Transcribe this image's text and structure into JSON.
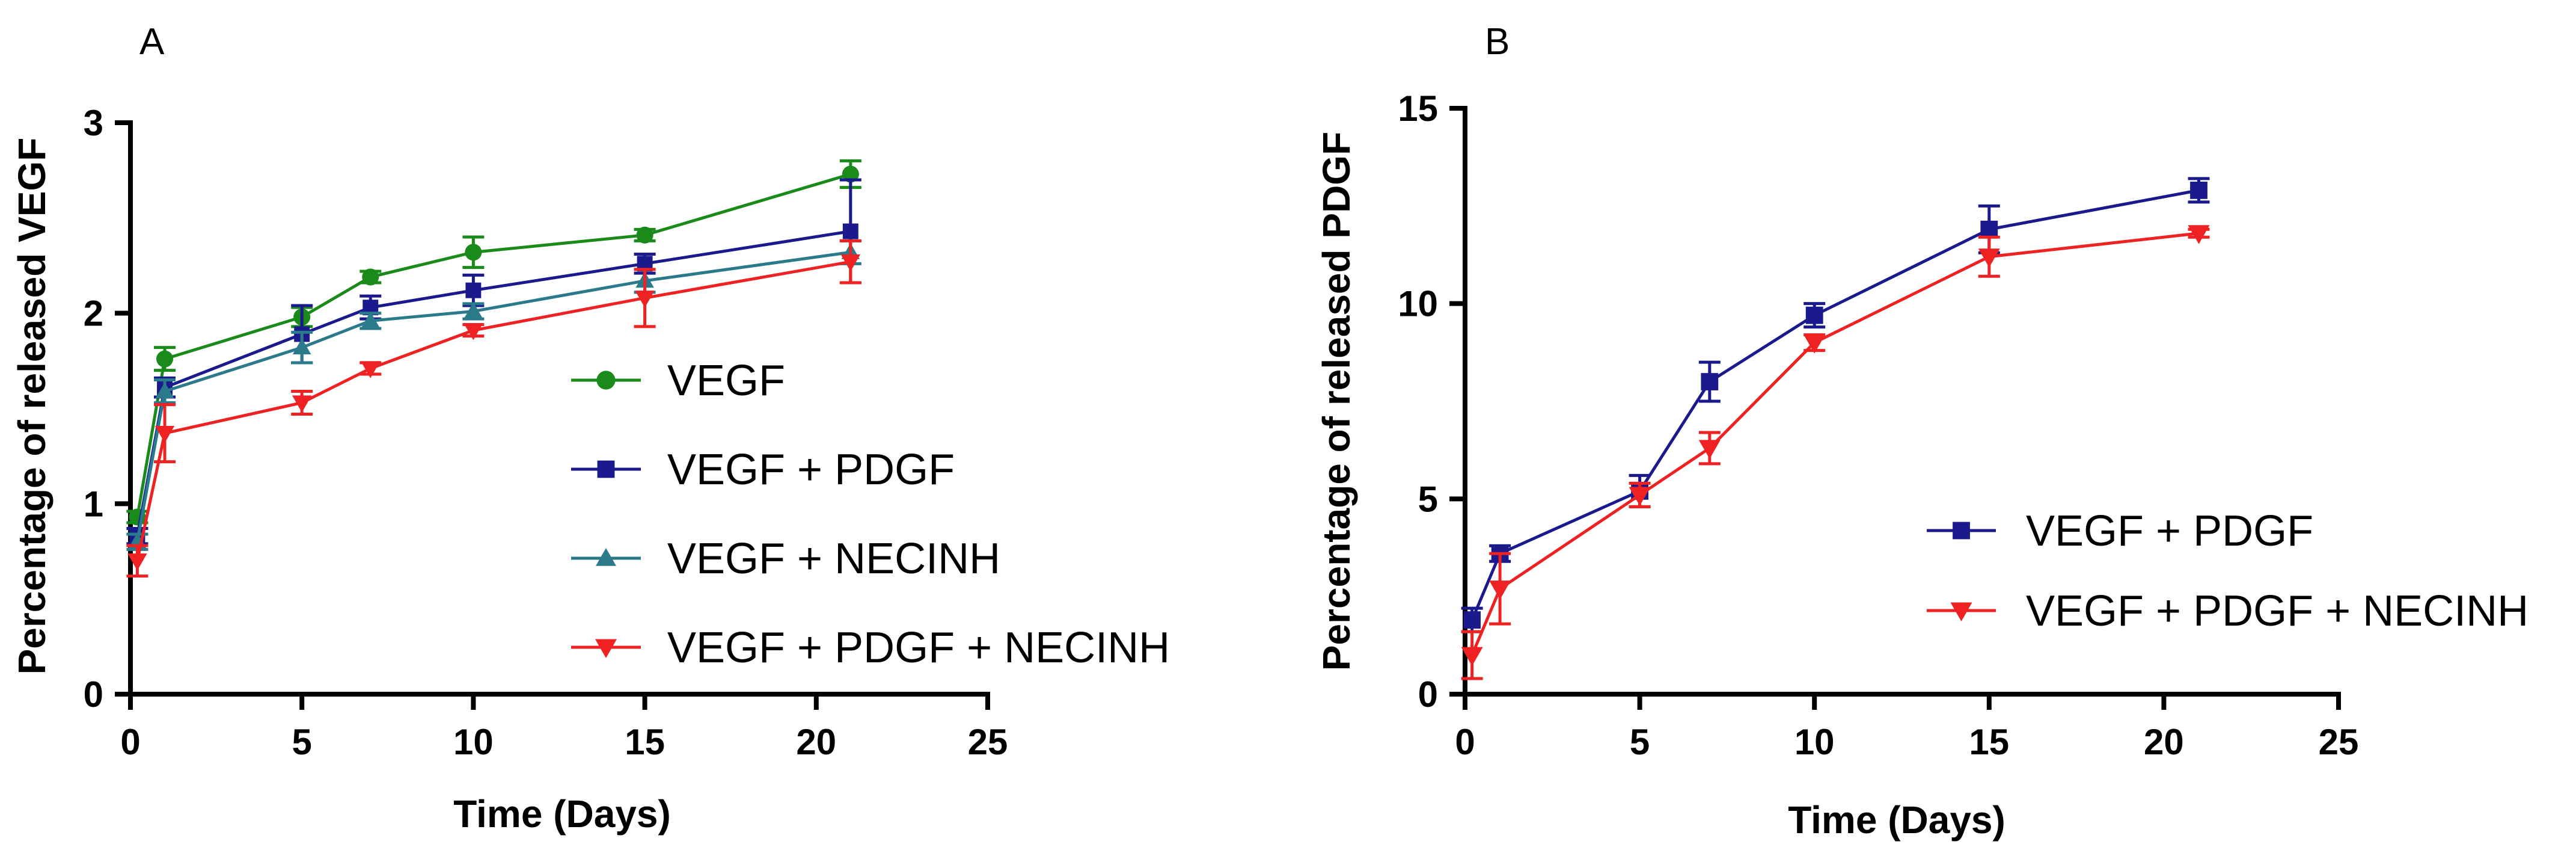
{
  "chart_data": [
    {
      "type": "line",
      "panel": "A",
      "xlabel": "Time (Days)",
      "ylabel": "Percentage of released VEGF",
      "xlim": [
        0,
        25
      ],
      "ylim": [
        0,
        3
      ],
      "xticks": [
        "0",
        "5",
        "10",
        "15",
        "20",
        "25"
      ],
      "yticks": [
        "0",
        "1",
        "2",
        "3"
      ],
      "legend_position": "center-right",
      "x": [
        0.2,
        1,
        5,
        7,
        10,
        15,
        21
      ],
      "series": [
        {
          "name": "VEGF",
          "color": "#1a8a1a",
          "marker": "circle",
          "values": [
            0.93,
            1.76,
            1.98,
            2.19,
            2.32,
            2.41,
            2.73
          ],
          "errors": [
            0.03,
            0.06,
            0.05,
            0.03,
            0.08,
            0.03,
            0.07
          ]
        },
        {
          "name": "VEGF + PDGF",
          "color": "#1a1a8c",
          "marker": "square",
          "values": [
            0.83,
            1.61,
            1.89,
            2.03,
            2.12,
            2.26,
            2.43
          ],
          "errors": [
            0.04,
            0.05,
            0.15,
            0.06,
            0.08,
            0.05,
            0.27
          ]
        },
        {
          "name": "VEGF + NECINH",
          "color": "#2a7a8c",
          "marker": "triangle-up",
          "values": [
            0.8,
            1.59,
            1.82,
            1.96,
            2.01,
            2.17,
            2.32
          ],
          "errors": [
            0.04,
            0.06,
            0.08,
            0.04,
            0.04,
            0.06,
            0.06
          ]
        },
        {
          "name": "VEGF + PDGF + NECINH",
          "color": "#ee2222",
          "marker": "triangle-down",
          "values": [
            0.7,
            1.37,
            1.53,
            1.71,
            1.91,
            2.08,
            2.27
          ],
          "errors": [
            0.08,
            0.15,
            0.06,
            0.03,
            0.03,
            0.15,
            0.11
          ]
        }
      ]
    },
    {
      "type": "line",
      "panel": "B",
      "xlabel": "Time (Days)",
      "ylabel": "Percentage of released PDGF",
      "xlim": [
        0,
        25
      ],
      "ylim": [
        0,
        15
      ],
      "xticks": [
        "0",
        "5",
        "10",
        "15",
        "20",
        "25"
      ],
      "yticks": [
        "0",
        "5",
        "10",
        "15"
      ],
      "legend_position": "bottom-right",
      "x": [
        0.2,
        1,
        5,
        7,
        10,
        15,
        21
      ],
      "series": [
        {
          "name": "VEGF + PDGF",
          "color": "#1a1a8c",
          "marker": "square",
          "values": [
            1.9,
            3.6,
            5.2,
            8.0,
            9.7,
            11.9,
            12.9
          ],
          "errors": [
            0.3,
            0.2,
            0.4,
            0.5,
            0.3,
            0.6,
            0.3
          ]
        },
        {
          "name": "VEGF + PDGF + NECINH",
          "color": "#ee2222",
          "marker": "triangle-down",
          "values": [
            1.0,
            2.7,
            5.1,
            6.3,
            9.0,
            11.2,
            11.8
          ],
          "errors": [
            0.6,
            0.9,
            0.3,
            0.4,
            0.2,
            0.5,
            0.1
          ]
        }
      ]
    }
  ]
}
